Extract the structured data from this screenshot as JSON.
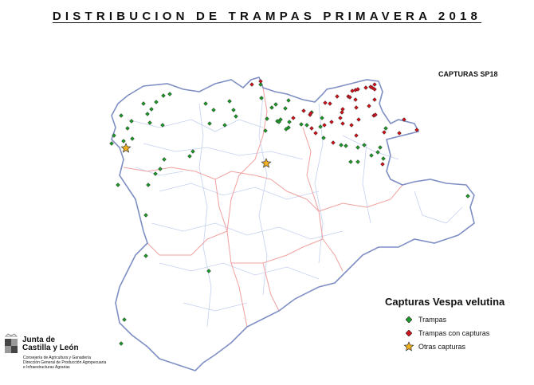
{
  "title": "DISTRIBUCION DE TRAMPAS PRIMAVERA 2018",
  "subtitle": "CAPTURAS SP18",
  "legend": {
    "title": "Capturas Vespa velutina",
    "items": [
      {
        "label": "Trampas",
        "symbol": "diamond",
        "color": "#1f9a2a"
      },
      {
        "label": "Trampas con capturas",
        "symbol": "diamond",
        "color": "#d0141e"
      },
      {
        "label": "Otras capturas",
        "symbol": "star",
        "color": "#f2b01e"
      }
    ]
  },
  "logo": {
    "name_line1": "Junta de",
    "name_line2": "Castilla y León",
    "dept_line1": "Consejería de Agricultura y Ganadería",
    "dept_line2": "Dirección General de Producción Agropecuaria",
    "dept_line3": "e Infraestructuras Agrarias"
  },
  "colors": {
    "region_outline": "#7f8fc4",
    "province_borders": "#f0a0a0",
    "district_borders": "#c4d0ee"
  }
}
